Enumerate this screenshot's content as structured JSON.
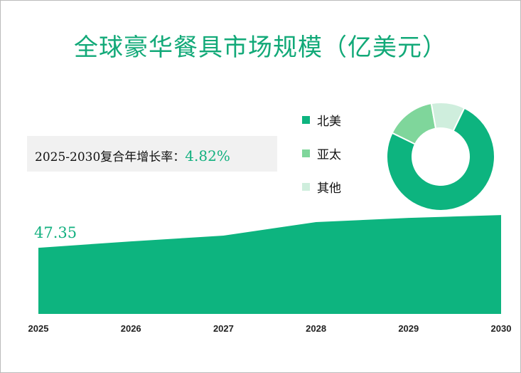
{
  "title": "全球豪华餐具市场规模（亿美元）",
  "cagr": {
    "label": "2025-2030复合年增长率：",
    "value": "4.82%"
  },
  "colors": {
    "main": "#0db47f",
    "mid": "#7fd69b",
    "light": "#cfeedd",
    "title": "#12a978"
  },
  "chart_data": [
    {
      "type": "area",
      "title": "全球豪华餐具市场规模（亿美元）",
      "categories": [
        "2025",
        "2026",
        "2027",
        "2028",
        "2029",
        "2030"
      ],
      "values": [
        47.35,
        49.8,
        52.0,
        57.2,
        58.8,
        59.9
      ],
      "data_labels": [
        {
          "index": 0,
          "text": "47.35"
        }
      ],
      "ylim": [
        22,
        62
      ],
      "grid": false
    },
    {
      "type": "pie",
      "donut": true,
      "labels": [
        "北美",
        "亚太",
        "其他"
      ],
      "values": [
        75,
        15,
        10
      ],
      "legend": "left"
    }
  ]
}
